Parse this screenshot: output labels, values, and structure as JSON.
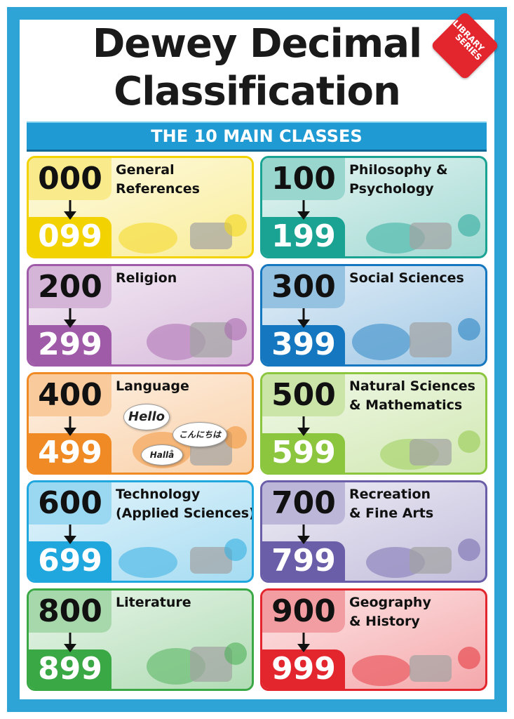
{
  "header": {
    "title_lines": [
      "Dewey Decimal",
      "Classification"
    ],
    "badge_lines": [
      "LIBRARY",
      "SERIES"
    ],
    "subtitle": "THE 10 MAIN CLASSES"
  },
  "classes": [
    {
      "start": "000",
      "end": "099",
      "name_lines": [
        "General",
        "References"
      ],
      "color": "#f2d200"
    },
    {
      "start": "100",
      "end": "199",
      "name_lines": [
        "Philosophy &",
        "Psychology"
      ],
      "color": "#1aa393"
    },
    {
      "start": "200",
      "end": "299",
      "name_lines": [
        "Religion"
      ],
      "color": "#a05ba8"
    },
    {
      "start": "300",
      "end": "399",
      "name_lines": [
        "Social Sciences"
      ],
      "color": "#1577bf"
    },
    {
      "start": "400",
      "end": "499",
      "name_lines": [
        "Language"
      ],
      "color": "#f08a24",
      "bubbles": [
        "Hello",
        "こんにちは",
        "Hallå"
      ]
    },
    {
      "start": "500",
      "end": "599",
      "name_lines": [
        "Natural Sciences",
        "& Mathematics"
      ],
      "color": "#8cc63f"
    },
    {
      "start": "600",
      "end": "699",
      "name_lines": [
        "Technology",
        "(Applied Sciences)"
      ],
      "color": "#1fa7de"
    },
    {
      "start": "700",
      "end": "799",
      "name_lines": [
        "Recreation",
        "& Fine Arts"
      ],
      "color": "#6b5ea8"
    },
    {
      "start": "800",
      "end": "899",
      "name_lines": [
        "Literature"
      ],
      "color": "#3aa845"
    },
    {
      "start": "900",
      "end": "999",
      "name_lines": [
        "Geography",
        "& History"
      ],
      "color": "#e3262e"
    }
  ]
}
